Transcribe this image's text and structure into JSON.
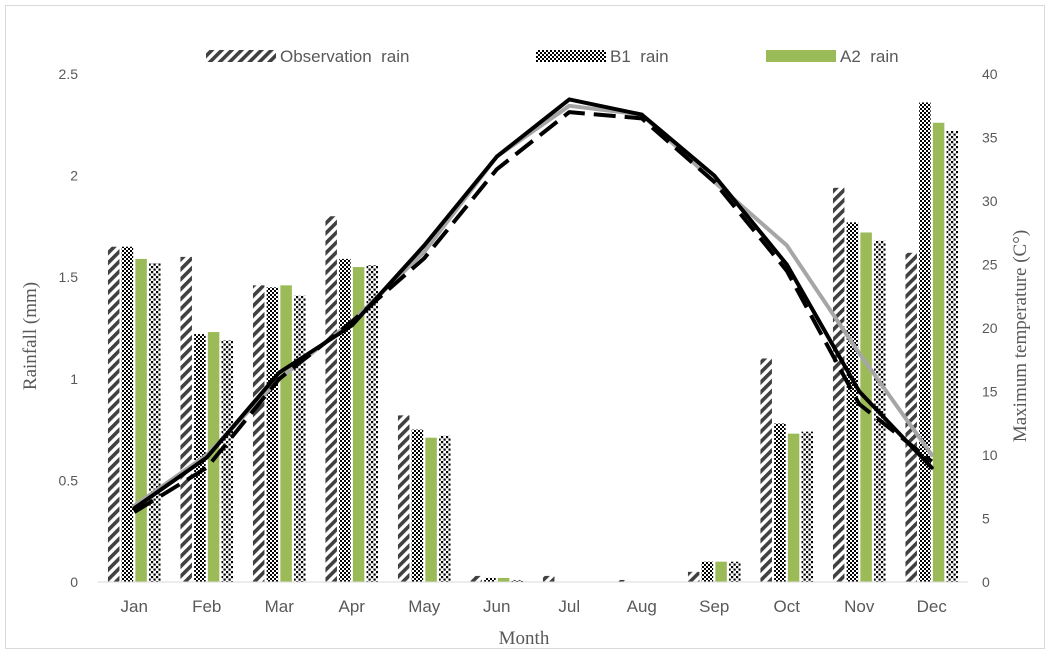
{
  "chart_data": {
    "type": "bar",
    "xlabel": "Month",
    "ylabel": "Rainfall (mm)",
    "y2label": "Maximum temperature (C°)",
    "categories": [
      "Jan",
      "Feb",
      "Mar",
      "Apr",
      "May",
      "Jun",
      "Jul",
      "Aug",
      "Sep",
      "Oct",
      "Nov",
      "Dec"
    ],
    "ylim": [
      0,
      2.5
    ],
    "yticks": [
      "0",
      "0.5",
      "1",
      "1.5",
      "2",
      "2.5"
    ],
    "y2lim": [
      0,
      40
    ],
    "y2ticks": [
      "0",
      "5",
      "10",
      "15",
      "20",
      "25",
      "30",
      "35",
      "40"
    ],
    "grid": false,
    "legend_position": "top",
    "bar_series": [
      {
        "name": "Observation  rain",
        "pattern": "diagonal-stripes",
        "color": "#404040",
        "values": [
          1.65,
          1.6,
          1.46,
          1.8,
          0.82,
          0.03,
          0.03,
          0.01,
          0.05,
          1.1,
          1.94,
          1.62
        ]
      },
      {
        "name": "B1  rain",
        "pattern": "checker",
        "color": "#000000",
        "values": [
          1.65,
          1.22,
          1.45,
          1.59,
          0.75,
          0.02,
          0.0,
          0.0,
          0.1,
          0.78,
          1.77,
          2.36
        ]
      },
      {
        "name": "A2  rain",
        "pattern": "solid",
        "color": "#9bbb59",
        "values": [
          1.59,
          1.23,
          1.46,
          1.55,
          0.71,
          0.02,
          0.0,
          0.0,
          0.1,
          0.73,
          1.72,
          2.26
        ]
      },
      {
        "name": "",
        "pattern": "dots",
        "color": "#000000",
        "values": [
          1.57,
          1.19,
          1.41,
          1.56,
          0.72,
          0.01,
          0.0,
          0.0,
          0.1,
          0.74,
          1.68,
          2.22
        ]
      }
    ],
    "line_series": [
      {
        "name": "",
        "axis": "right",
        "style": "solid",
        "color": "#a6a6a6",
        "values": [
          6.0,
          10.0,
          16.0,
          20.5,
          26.0,
          33.5,
          37.5,
          36.8,
          31.5,
          26.5,
          18.0,
          10.0
        ]
      },
      {
        "name": "",
        "axis": "right",
        "style": "solid",
        "color": "#000000",
        "values": [
          5.8,
          9.8,
          16.5,
          20.2,
          26.5,
          33.5,
          38.0,
          36.8,
          32.0,
          25.0,
          15.0,
          9.0
        ]
      },
      {
        "name": "",
        "axis": "right",
        "style": "dashed",
        "color": "#000000",
        "values": [
          5.5,
          9.0,
          16.0,
          20.5,
          25.5,
          32.5,
          37.0,
          36.5,
          31.5,
          24.5,
          14.0,
          9.5
        ]
      }
    ]
  }
}
